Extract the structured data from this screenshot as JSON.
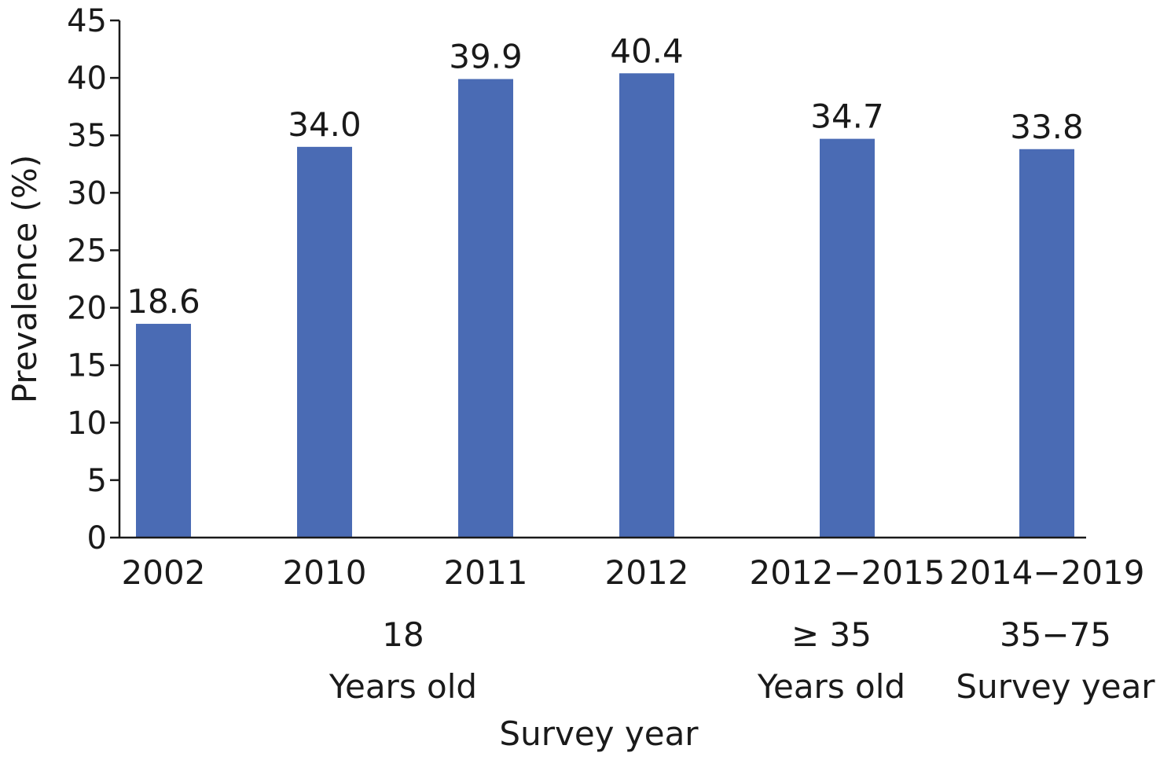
{
  "chart_data": {
    "type": "bar",
    "categories": [
      "2002",
      "2010",
      "2011",
      "2012",
      "2012−2015",
      "2014−2019"
    ],
    "values": [
      18.6,
      34.0,
      39.9,
      40.4,
      34.7,
      33.8
    ],
    "value_labels": [
      "18.6",
      "34.0",
      "39.9",
      "40.4",
      "34.7",
      "33.8"
    ],
    "ylabel": "Prevalence (%)",
    "ylim": [
      0,
      45
    ],
    "yticks": [
      0,
      5,
      10,
      15,
      20,
      25,
      30,
      35,
      40,
      45
    ],
    "grid": false,
    "bar_color": "#4a6bb4",
    "group_labels": [
      {
        "lines": [
          "18",
          "Years old"
        ],
        "categories": [
          0,
          1,
          2,
          3
        ]
      },
      {
        "lines": [
          "≥ 35",
          "Years old"
        ],
        "categories": [
          4
        ]
      },
      {
        "lines": [
          "35−75",
          "Survey year"
        ],
        "categories": [
          5
        ]
      }
    ],
    "xlabel": "Survey year"
  }
}
